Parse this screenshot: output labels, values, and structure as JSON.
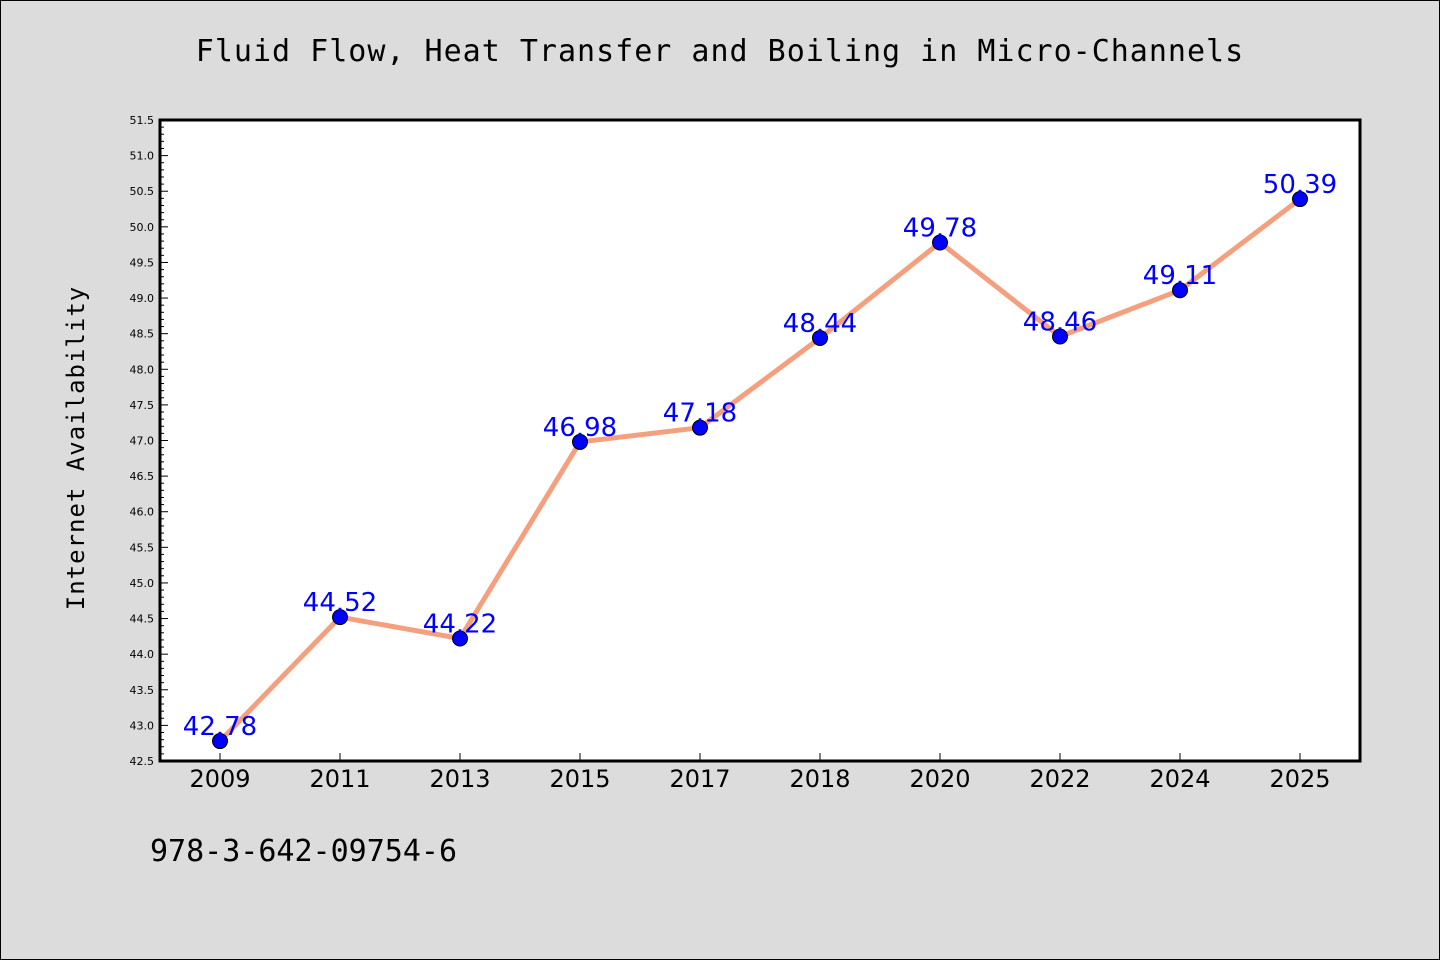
{
  "chart_data": {
    "type": "line",
    "title": "Fluid Flow, Heat Transfer and Boiling in Micro-Channels",
    "xlabel": "",
    "ylabel": "Internet Availability",
    "categories": [
      "2009",
      "2011",
      "2013",
      "2015",
      "2017",
      "2018",
      "2020",
      "2022",
      "2024",
      "2025"
    ],
    "series": [
      {
        "values": [
          42.78,
          44.52,
          44.22,
          46.98,
          47.18,
          48.44,
          49.78,
          48.46,
          49.11,
          50.39
        ],
        "labels": [
          "42.78",
          "44.52",
          "44.22",
          "46.98",
          "47.18",
          "48.44",
          "49.78",
          "48.46",
          "49.11",
          "50.39"
        ],
        "line_color": "#f4a07e",
        "marker_color": "#0000ff"
      }
    ],
    "ylim": [
      42.5,
      51.5
    ],
    "yticks": [
      "42.5",
      "43.0",
      "43.5",
      "44.0",
      "44.5",
      "45.0",
      "45.5",
      "46.0",
      "46.5",
      "47.0",
      "47.5",
      "48.0",
      "48.5",
      "49.0",
      "49.5",
      "50.0",
      "50.5",
      "51.0",
      "51.5"
    ],
    "grid": false,
    "data_label_color": "#0000ff"
  },
  "footer": {
    "isbn": "978-3-642-09754-6"
  }
}
